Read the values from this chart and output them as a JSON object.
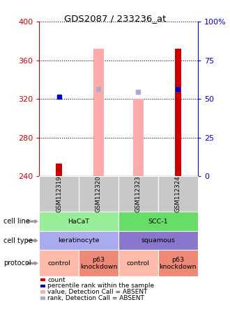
{
  "title": "GDS2087 / 233236_at",
  "samples": [
    "GSM112319",
    "GSM112320",
    "GSM112323",
    "GSM112324"
  ],
  "ylim": [
    240,
    400
  ],
  "yticks_left": [
    240,
    280,
    320,
    360,
    400
  ],
  "yticks_right": [
    0,
    25,
    50,
    75,
    100
  ],
  "right_labels": [
    "0",
    "25",
    "50",
    "75",
    "100%"
  ],
  "count_bars": [
    253,
    0,
    0,
    372
  ],
  "count_color": "#cc0000",
  "value_bars": [
    0,
    372,
    320,
    0
  ],
  "value_bar_color": "#ffaaaa",
  "rank_dots_absent": [
    0,
    330,
    327,
    330
  ],
  "rank_dot_color_absent": "#aaaacc",
  "percentile_dots": [
    322,
    0,
    0,
    330
  ],
  "percentile_dot_color": "#0000cc",
  "cell_line_groups": [
    {
      "label": "HaCaT",
      "span": [
        0,
        2
      ],
      "color": "#99ee99"
    },
    {
      "label": "SCC-1",
      "span": [
        2,
        4
      ],
      "color": "#66dd66"
    }
  ],
  "cell_type_groups": [
    {
      "label": "keratinocyte",
      "span": [
        0,
        2
      ],
      "color": "#aaaaee"
    },
    {
      "label": "squamous",
      "span": [
        2,
        4
      ],
      "color": "#8877cc"
    }
  ],
  "protocol_groups": [
    {
      "label": "control",
      "span": [
        0,
        1
      ],
      "color": "#ffbbaa"
    },
    {
      "label": "p63\nknockdown",
      "span": [
        1,
        2
      ],
      "color": "#ee8877"
    },
    {
      "label": "control",
      "span": [
        2,
        3
      ],
      "color": "#ffbbaa"
    },
    {
      "label": "p63\nknockdown",
      "span": [
        3,
        4
      ],
      "color": "#ee8877"
    }
  ],
  "row_labels": [
    "cell line",
    "cell type",
    "protocol"
  ],
  "legend_items": [
    {
      "label": "count",
      "color": "#cc0000"
    },
    {
      "label": "percentile rank within the sample",
      "color": "#0000cc"
    },
    {
      "label": "value, Detection Call = ABSENT",
      "color": "#ffaaaa"
    },
    {
      "label": "rank, Detection Call = ABSENT",
      "color": "#aaaacc"
    }
  ],
  "background_color": "#ffffff"
}
